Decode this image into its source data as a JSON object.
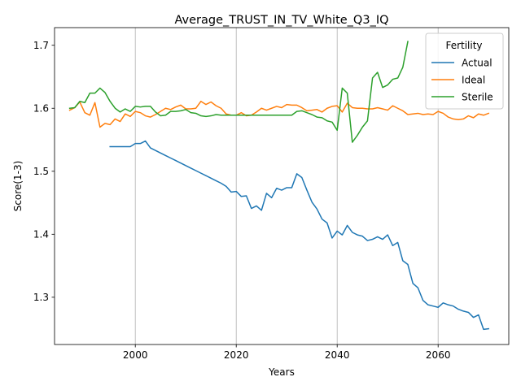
{
  "chart_data": {
    "type": "line",
    "title": "Average_TRUST_IN_TV_White_Q3_IQ",
    "xlabel": "Years",
    "ylabel": "Score(1-3)",
    "xlim": [
      1984,
      2074
    ],
    "ylim": [
      1.225,
      1.728
    ],
    "xticks": [
      2000,
      2020,
      2040,
      2060
    ],
    "yticks": [
      1.3,
      1.4,
      1.5,
      1.6,
      1.7
    ],
    "ytick_labels": [
      "1.3",
      "1.4",
      "1.5",
      "1.6",
      "1.7"
    ],
    "grid": "x-only",
    "legend": {
      "title": "Fertility",
      "placement": "top-right"
    },
    "series": [
      {
        "name": "Actual",
        "color": "#1f77b4",
        "x": [
          1995,
          1996,
          1997,
          1998,
          1999,
          2000,
          2001,
          2002,
          2003,
          2004,
          2005,
          2006,
          2007,
          2008,
          2009,
          2010,
          2011,
          2012,
          2013,
          2014,
          2015,
          2016,
          2017,
          2018,
          2019,
          2020,
          2021,
          2022,
          2023,
          2024,
          2025,
          2026,
          2027,
          2028,
          2029,
          2030,
          2031,
          2032,
          2033,
          2034,
          2035,
          2036,
          2037,
          2038,
          2039,
          2040,
          2041,
          2042,
          2043,
          2044,
          2045,
          2046,
          2047,
          2048,
          2049,
          2050,
          2051,
          2052,
          2053,
          2054,
          2055,
          2056,
          2057,
          2058,
          2059,
          2060,
          2061,
          2062,
          2063,
          2064,
          2065,
          2066,
          2067,
          2068,
          2069,
          2070
        ],
        "values": [
          1.539,
          1.539,
          1.539,
          1.539,
          1.539,
          1.544,
          1.544,
          1.548,
          1.537,
          1.533,
          1.529,
          1.525,
          1.521,
          1.517,
          1.513,
          1.509,
          1.505,
          1.501,
          1.497,
          1.493,
          1.489,
          1.485,
          1.481,
          1.476,
          1.467,
          1.468,
          1.46,
          1.461,
          1.441,
          1.445,
          1.438,
          1.465,
          1.458,
          1.473,
          1.47,
          1.474,
          1.474,
          1.496,
          1.49,
          1.47,
          1.451,
          1.44,
          1.424,
          1.418,
          1.394,
          1.405,
          1.399,
          1.414,
          1.403,
          1.399,
          1.397,
          1.39,
          1.392,
          1.396,
          1.392,
          1.399,
          1.382,
          1.387,
          1.358,
          1.352,
          1.322,
          1.315,
          1.295,
          1.288,
          1.286,
          1.284,
          1.291,
          1.288,
          1.286,
          1.281,
          1.278,
          1.276,
          1.268,
          1.272,
          1.249,
          1.25
        ]
      },
      {
        "name": "Ideal",
        "color": "#ff7f0e",
        "x": [
          1987,
          1988,
          1989,
          1990,
          1991,
          1992,
          1993,
          1994,
          1995,
          1996,
          1997,
          1998,
          1999,
          2000,
          2001,
          2002,
          2003,
          2004,
          2005,
          2006,
          2007,
          2008,
          2009,
          2010,
          2011,
          2012,
          2013,
          2014,
          2015,
          2016,
          2017,
          2018,
          2019,
          2020,
          2021,
          2022,
          2023,
          2024,
          2025,
          2026,
          2027,
          2028,
          2029,
          2030,
          2031,
          2032,
          2033,
          2034,
          2035,
          2036,
          2037,
          2038,
          2039,
          2040,
          2041,
          2042,
          2043,
          2044,
          2045,
          2046,
          2047,
          2048,
          2049,
          2050,
          2051,
          2052,
          2053,
          2054,
          2055,
          2056,
          2057,
          2058,
          2059,
          2060,
          2061,
          2062,
          2063,
          2064,
          2065,
          2066,
          2067,
          2068,
          2069,
          2070
        ],
        "values": [
          1.597,
          1.601,
          1.61,
          1.593,
          1.589,
          1.609,
          1.57,
          1.576,
          1.574,
          1.583,
          1.579,
          1.591,
          1.587,
          1.595,
          1.593,
          1.588,
          1.586,
          1.59,
          1.595,
          1.6,
          1.598,
          1.602,
          1.605,
          1.599,
          1.599,
          1.6,
          1.611,
          1.606,
          1.61,
          1.604,
          1.6,
          1.591,
          1.589,
          1.589,
          1.593,
          1.588,
          1.589,
          1.594,
          1.6,
          1.597,
          1.6,
          1.603,
          1.601,
          1.606,
          1.605,
          1.605,
          1.601,
          1.596,
          1.597,
          1.598,
          1.594,
          1.6,
          1.603,
          1.604,
          1.594,
          1.608,
          1.601,
          1.6,
          1.6,
          1.599,
          1.599,
          1.601,
          1.599,
          1.597,
          1.604,
          1.6,
          1.596,
          1.59,
          1.591,
          1.592,
          1.59,
          1.591,
          1.59,
          1.595,
          1.592,
          1.586,
          1.583,
          1.582,
          1.583,
          1.588,
          1.585,
          1.591,
          1.589,
          1.592
        ]
      },
      {
        "name": "Sterile",
        "color": "#2ca02c",
        "x": [
          1987,
          1988,
          1989,
          1990,
          1991,
          1992,
          1993,
          1994,
          1995,
          1996,
          1997,
          1998,
          1999,
          2000,
          2001,
          2002,
          2003,
          2004,
          2005,
          2006,
          2007,
          2008,
          2009,
          2010,
          2011,
          2012,
          2013,
          2014,
          2015,
          2016,
          2017,
          2018,
          2019,
          2020,
          2021,
          2022,
          2023,
          2024,
          2025,
          2026,
          2027,
          2028,
          2029,
          2030,
          2031,
          2032,
          2033,
          2034,
          2035,
          2036,
          2037,
          2038,
          2039,
          2040,
          2041,
          2042,
          2043,
          2044,
          2045,
          2046,
          2047,
          2048,
          2049,
          2050,
          2051,
          2052,
          2053,
          2054
        ],
        "values": [
          1.6,
          1.601,
          1.611,
          1.609,
          1.624,
          1.624,
          1.632,
          1.625,
          1.611,
          1.6,
          1.594,
          1.599,
          1.595,
          1.603,
          1.602,
          1.603,
          1.603,
          1.594,
          1.588,
          1.589,
          1.595,
          1.595,
          1.596,
          1.598,
          1.593,
          1.592,
          1.588,
          1.587,
          1.588,
          1.59,
          1.589,
          1.589,
          1.589,
          1.589,
          1.589,
          1.589,
          1.589,
          1.589,
          1.589,
          1.589,
          1.589,
          1.589,
          1.589,
          1.589,
          1.589,
          1.595,
          1.596,
          1.593,
          1.59,
          1.586,
          1.585,
          1.58,
          1.578,
          1.565,
          1.632,
          1.624,
          1.546,
          1.557,
          1.57,
          1.58,
          1.648,
          1.657,
          1.633,
          1.637,
          1.646,
          1.648,
          1.665,
          1.706
        ]
      }
    ]
  }
}
